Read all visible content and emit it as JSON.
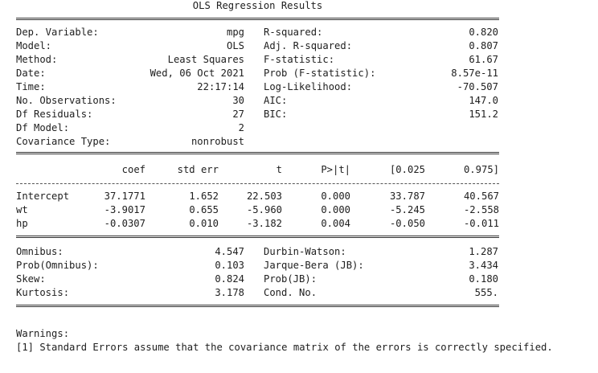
{
  "title": "OLS Regression Results",
  "summary_left": [
    {
      "label": "Dep. Variable:",
      "value": "mpg"
    },
    {
      "label": "Model:",
      "value": "OLS"
    },
    {
      "label": "Method:",
      "value": "Least Squares"
    },
    {
      "label": "Date:",
      "value": "Wed, 06 Oct 2021"
    },
    {
      "label": "Time:",
      "value": "22:17:14"
    },
    {
      "label": "No. Observations:",
      "value": "30"
    },
    {
      "label": "Df Residuals:",
      "value": "27"
    },
    {
      "label": "Df Model:",
      "value": "2"
    },
    {
      "label": "Covariance Type:",
      "value": "nonrobust"
    }
  ],
  "summary_right": [
    {
      "label": "R-squared:",
      "value": "0.820"
    },
    {
      "label": "Adj. R-squared:",
      "value": "0.807"
    },
    {
      "label": "F-statistic:",
      "value": "61.67"
    },
    {
      "label": "Prob (F-statistic):",
      "value": "8.57e-11"
    },
    {
      "label": "Log-Likelihood:",
      "value": "-70.507"
    },
    {
      "label": "AIC:",
      "value": "147.0"
    },
    {
      "label": "BIC:",
      "value": "151.2"
    }
  ],
  "coef_headers": [
    "coef",
    "std err",
    "t",
    "P>|t|",
    "[0.025",
    "0.975]"
  ],
  "coef_rows": [
    {
      "name": "Intercept",
      "values": [
        "37.1771",
        "1.652",
        "22.503",
        "0.000",
        "33.787",
        "40.567"
      ]
    },
    {
      "name": "wt",
      "values": [
        "-3.9017",
        "0.655",
        "-5.960",
        "0.000",
        "-5.245",
        "-2.558"
      ]
    },
    {
      "name": "hp",
      "values": [
        "-0.0307",
        "0.010",
        "-3.182",
        "0.004",
        "-0.050",
        "-0.011"
      ]
    }
  ],
  "diag_left": [
    {
      "label": "Omnibus:",
      "value": "4.547"
    },
    {
      "label": "Prob(Omnibus):",
      "value": "0.103"
    },
    {
      "label": "Skew:",
      "value": "0.824"
    },
    {
      "label": "Kurtosis:",
      "value": "3.178"
    }
  ],
  "diag_right": [
    {
      "label": "Durbin-Watson:",
      "value": "1.287"
    },
    {
      "label": "Jarque-Bera (JB):",
      "value": "3.434"
    },
    {
      "label": "Prob(JB):",
      "value": "0.180"
    },
    {
      "label": "Cond. No.",
      "value": "555."
    }
  ],
  "warnings_title": "Warnings:",
  "warnings": [
    "[1] Standard Errors assume that the covariance matrix of the errors is correctly specified."
  ]
}
